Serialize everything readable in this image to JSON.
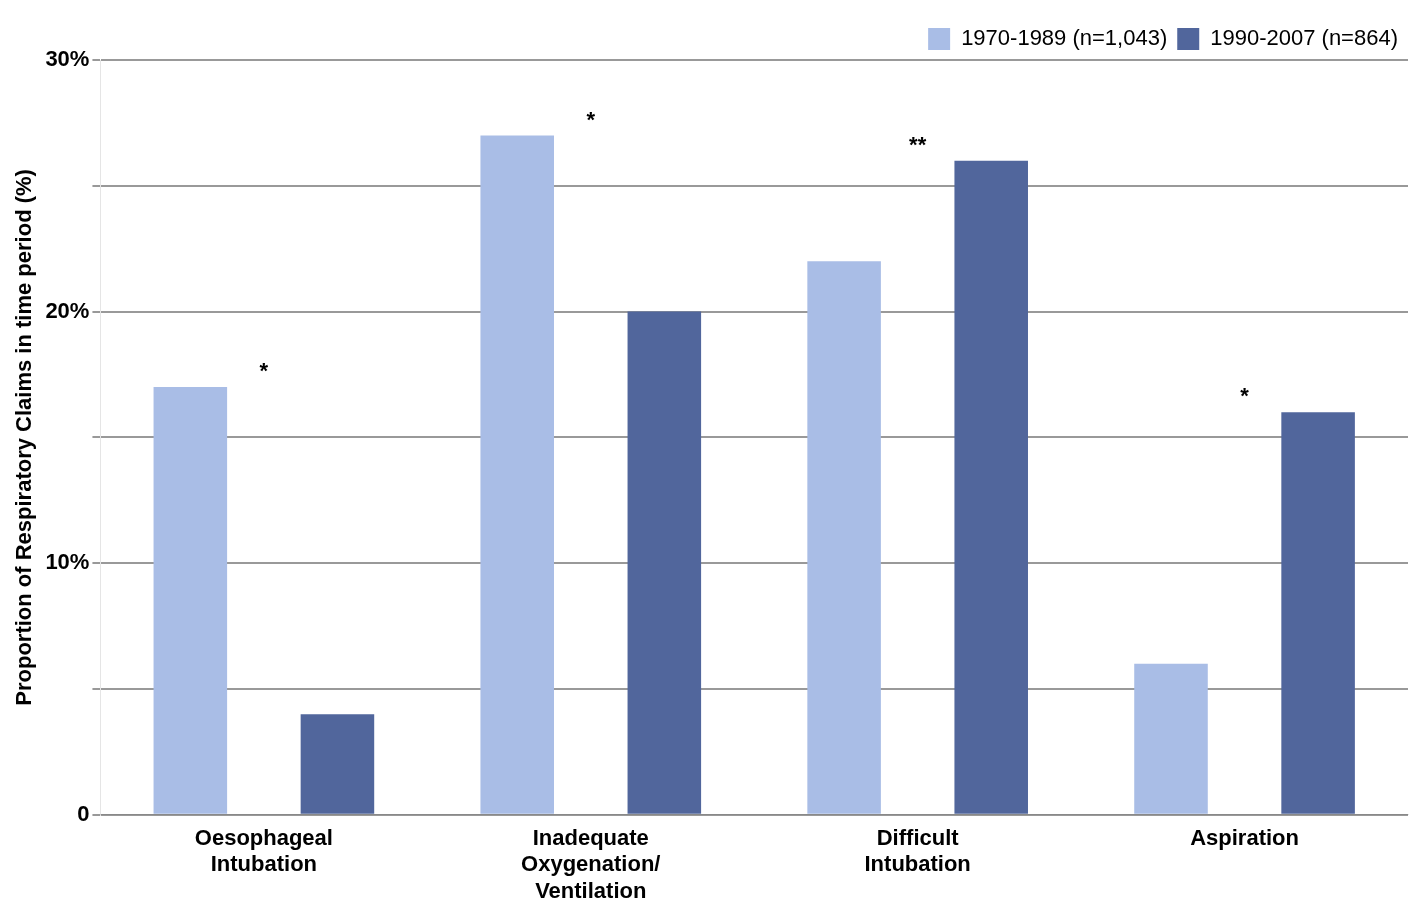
{
  "chart_data": {
    "type": "bar",
    "ylabel": "Proportion of Respiratory Claims in time period (%)",
    "categories": [
      "Oesophageal Intubation",
      "Inadequate Oxygenation/ Ventilation",
      "Difficult Intubation",
      "Aspiration"
    ],
    "series": [
      {
        "name": "1970-1989 (n=1,043)",
        "color": "#a9bde6",
        "values": [
          17,
          27,
          22,
          6
        ]
      },
      {
        "name": "1990-2007 (n=864)",
        "color": "#51669c",
        "values": [
          4,
          20,
          26,
          16
        ]
      }
    ],
    "ylim": [
      0,
      30
    ],
    "yticks": [
      {
        "value": 0,
        "label": "0"
      },
      {
        "value": 5,
        "label": null
      },
      {
        "value": 10,
        "label": "10%"
      },
      {
        "value": 15,
        "label": null
      },
      {
        "value": 20,
        "label": "20%"
      },
      {
        "value": 25,
        "label": null
      },
      {
        "value": 30,
        "label": "30%"
      }
    ],
    "grid": "y",
    "legend": "top right",
    "annotations": [
      "*",
      "*",
      "**",
      "*"
    ]
  }
}
